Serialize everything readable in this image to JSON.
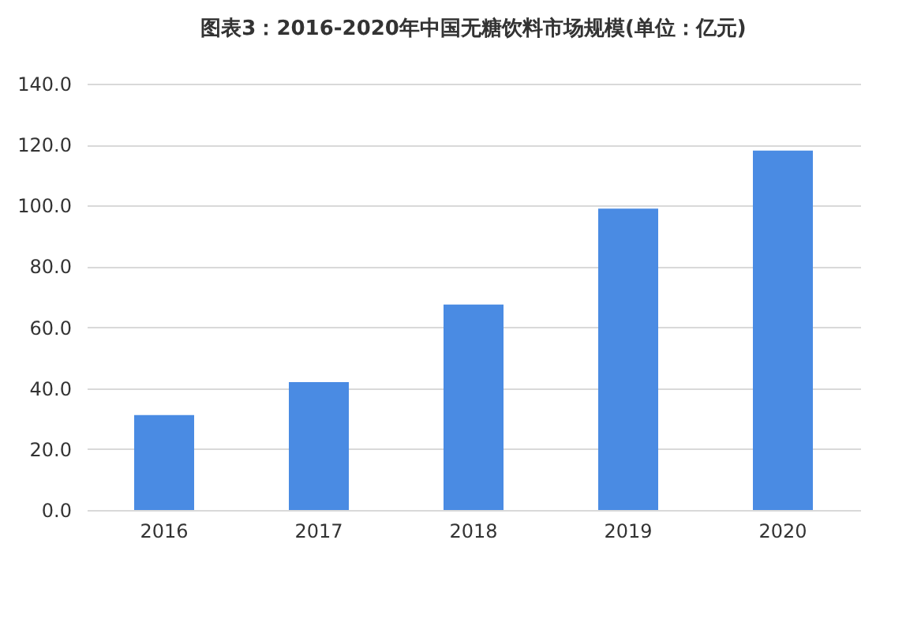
{
  "chart_data": {
    "type": "bar",
    "title": "图表3：2016-2020年中国无糖饮料市场规模(单位：亿元)",
    "categories": [
      "2016",
      "2017",
      "2018",
      "2019",
      "2020"
    ],
    "values": [
      31.2,
      42.0,
      67.5,
      99.0,
      118.0
    ],
    "color": "#4a8be3",
    "ylim": [
      0,
      140
    ],
    "yticks": [
      {
        "value": 0,
        "label": "0.0"
      },
      {
        "value": 20,
        "label": "20.0"
      },
      {
        "value": 40,
        "label": "40.0"
      },
      {
        "value": 60,
        "label": "60.0"
      },
      {
        "value": 80,
        "label": "80.0"
      },
      {
        "value": 100,
        "label": "100.0"
      },
      {
        "value": 120,
        "label": "120.0"
      },
      {
        "value": 140,
        "label": "140.0"
      }
    ],
    "grid": "y"
  }
}
